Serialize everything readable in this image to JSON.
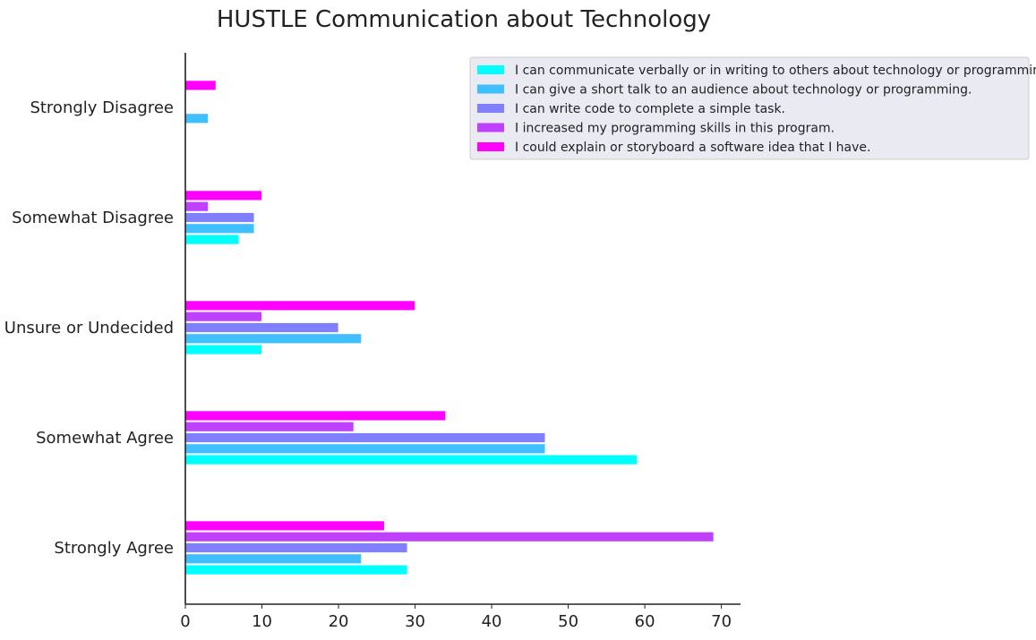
{
  "chart_data": {
    "type": "bar",
    "orientation": "horizontal",
    "title": "HUSTLE Communication about Technology",
    "xlabel": "",
    "ylabel": "",
    "xlim": [
      0,
      72.5
    ],
    "xticks": [
      0,
      10,
      20,
      30,
      40,
      50,
      60,
      70
    ],
    "grid": false,
    "legend_position": "top-right",
    "categories": [
      "Strongly Agree",
      "Somewhat Agree",
      "Unsure or Undecided",
      "Somewhat Disagree",
      "Strongly Disagree"
    ],
    "series": [
      {
        "name": "I can communicate verbally or in writing to others about technology or programming.",
        "color": "#00ffff",
        "values": [
          29,
          59,
          10,
          7,
          0
        ]
      },
      {
        "name": "I can give a short talk to an audience about technology or programming.",
        "color": "#40bfff",
        "values": [
          23,
          47,
          23,
          9,
          3
        ]
      },
      {
        "name": "I can write code to complete a simple task.",
        "color": "#8080ff",
        "values": [
          29,
          47,
          20,
          9,
          0
        ]
      },
      {
        "name": "I increased my programming skills in this program.",
        "color": "#bf40ff",
        "values": [
          69,
          22,
          10,
          3,
          0
        ]
      },
      {
        "name": "I could explain or storyboard a software idea that I have.",
        "color": "#ff00ff",
        "values": [
          26,
          34,
          30,
          10,
          4
        ]
      }
    ]
  }
}
